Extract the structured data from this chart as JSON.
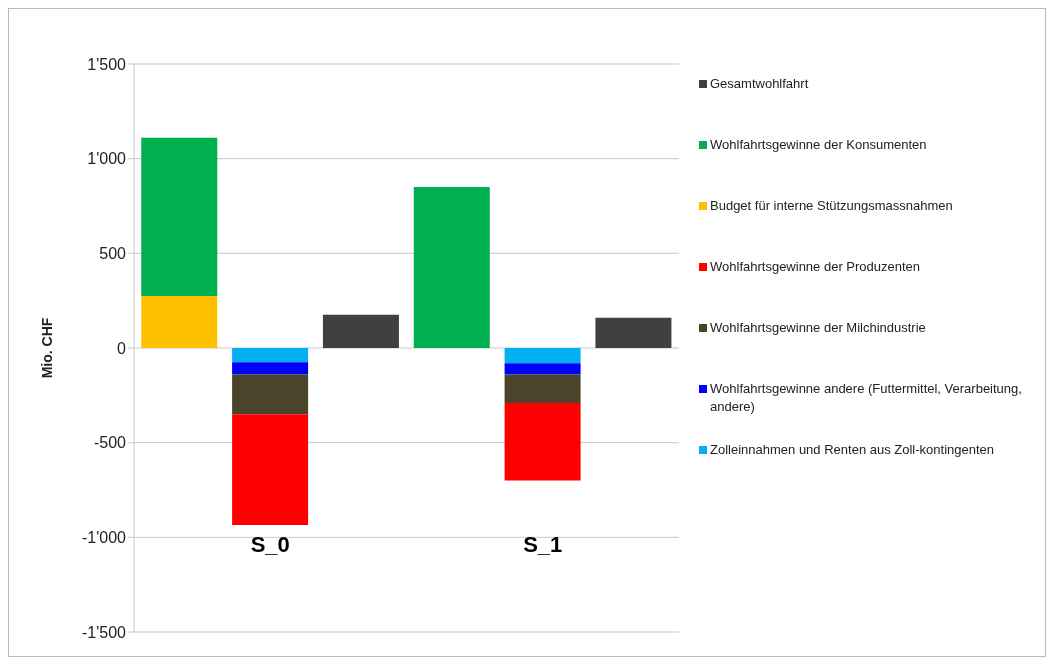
{
  "chart_data": {
    "type": "bar",
    "stacked": true,
    "ylabel": "Mio. CHF",
    "categories": [
      null,
      "S_0",
      null,
      null,
      "S_1",
      null
    ],
    "ylim": [
      -1500,
      1500
    ],
    "yticks": [
      {
        "value": -1500,
        "label": "-1'500"
      },
      {
        "value": -1000,
        "label": "-1'000"
      },
      -500,
      0,
      500,
      {
        "value": 1000,
        "label": "1'000"
      },
      {
        "value": 1500,
        "label": "1'500"
      }
    ],
    "grid": "y",
    "legend": "right",
    "series": [
      {
        "name": "Zolleinnahmen und Renten aus Zoll-kontingenten",
        "color": "#00b0f0",
        "values": [
          null,
          -75,
          null,
          null,
          -80,
          null
        ]
      },
      {
        "name": "Wohlfahrtsgewinne andere (Futtermittel, Verarbeitung, andere)",
        "color": "#0000ff",
        "values": [
          null,
          -65,
          null,
          null,
          -60,
          null
        ]
      },
      {
        "name": "Wohlfahrtsgewinne der Milchindustrie",
        "color": "#4a452a",
        "values": [
          null,
          -210,
          null,
          null,
          -150,
          null
        ]
      },
      {
        "name": "Wohlfahrtsgewinne der Produzenten",
        "color": "#ff0000",
        "values": [
          null,
          -585,
          null,
          null,
          -410,
          null
        ]
      },
      {
        "name": "Budget für interne Stützungsmassnahmen",
        "color": "#ffc000",
        "values": [
          275,
          null,
          null,
          0,
          null,
          null
        ]
      },
      {
        "name": "Wohlfahrtsgewinne der Konsumenten",
        "color": "#00b050",
        "values": [
          835,
          null,
          null,
          850,
          null,
          null
        ]
      },
      {
        "name": "Gesamtwohlfahrt",
        "color": "#404040",
        "values": [
          null,
          null,
          175,
          null,
          null,
          160
        ]
      }
    ]
  }
}
